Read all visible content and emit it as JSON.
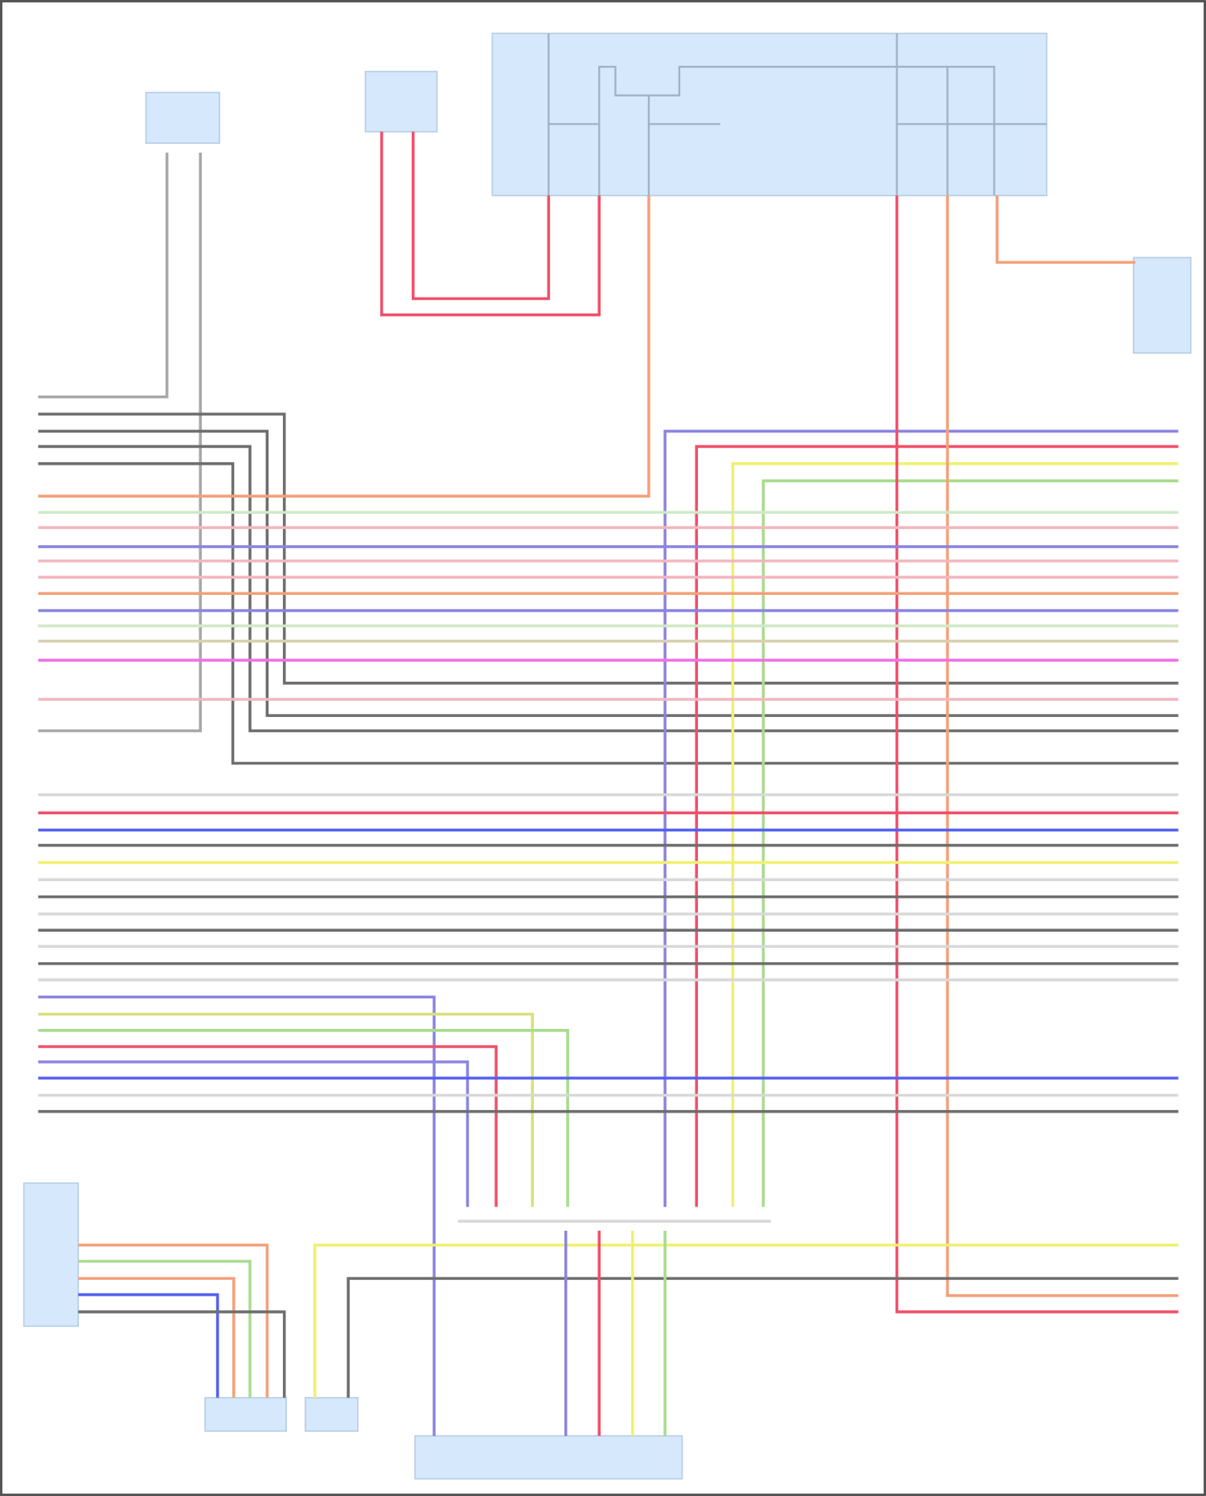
{
  "diagram": {
    "colors": {
      "gray": "#a8a8a8",
      "dark": "#6e6e6e",
      "orange": "#f4a07a",
      "red": "#f0506a",
      "pink": "#f3b6bf",
      "purple": "#8c84e0",
      "blue": "#5560f0",
      "green": "#a8dc8c",
      "lightgreen": "#cfe9c6",
      "yellow": "#f0f070",
      "yellowgreen": "#d8e07a",
      "tan": "#d8d0b0",
      "magenta": "#f070e8",
      "light": "#d8d8d8",
      "module": "#d6e8fb"
    }
  }
}
